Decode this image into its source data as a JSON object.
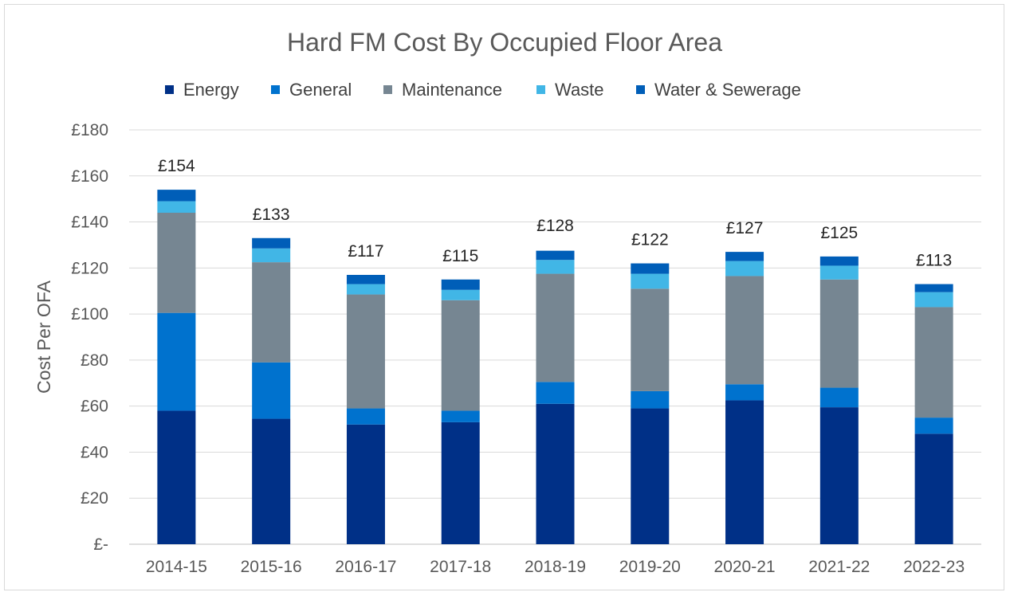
{
  "chart_data": {
    "type": "bar",
    "stacked": true,
    "title": "Hard FM Cost By Occupied Floor Area",
    "xlabel": "",
    "ylabel": "Cost Per OFA",
    "ylim": [
      0,
      180
    ],
    "yticks": [
      0,
      20,
      40,
      60,
      80,
      100,
      120,
      140,
      160,
      180
    ],
    "ytick_labels": [
      "£-",
      "£20",
      "£40",
      "£60",
      "£80",
      "£100",
      "£120",
      "£140",
      "£160",
      "£180"
    ],
    "grid": true,
    "legend_position": "top",
    "categories": [
      "2014-15",
      "2015-16",
      "2016-17",
      "2017-18",
      "2018-19",
      "2019-20",
      "2020-21",
      "2021-22",
      "2022-23"
    ],
    "series": [
      {
        "name": "Energy",
        "color": "#003087",
        "values": [
          58,
          54.5,
          52,
          53,
          61,
          59,
          62.5,
          59.5,
          48
        ]
      },
      {
        "name": "General",
        "color": "#0072CE",
        "values": [
          42.5,
          24.5,
          7,
          5,
          9.5,
          7.5,
          7,
          8.5,
          7
        ]
      },
      {
        "name": "Maintenance",
        "color": "#768692",
        "values": [
          43.5,
          43.5,
          49.5,
          48,
          47,
          44.5,
          47,
          47,
          48
        ]
      },
      {
        "name": "Waste",
        "color": "#41B6E6",
        "values": [
          5,
          6,
          4.5,
          4.5,
          6,
          6.5,
          6.5,
          6,
          6.5
        ]
      },
      {
        "name": "Water & Sewerage",
        "color": "#005EB8",
        "values": [
          5,
          4.5,
          4,
          4.5,
          4,
          4.5,
          4,
          4,
          3.5
        ]
      }
    ],
    "totals": [
      154,
      133,
      117,
      115,
      128,
      122,
      127,
      125,
      113
    ],
    "total_labels": [
      "£154",
      "£133",
      "£117",
      "£115",
      "£128",
      "£122",
      "£127",
      "£125",
      "£113"
    ]
  }
}
